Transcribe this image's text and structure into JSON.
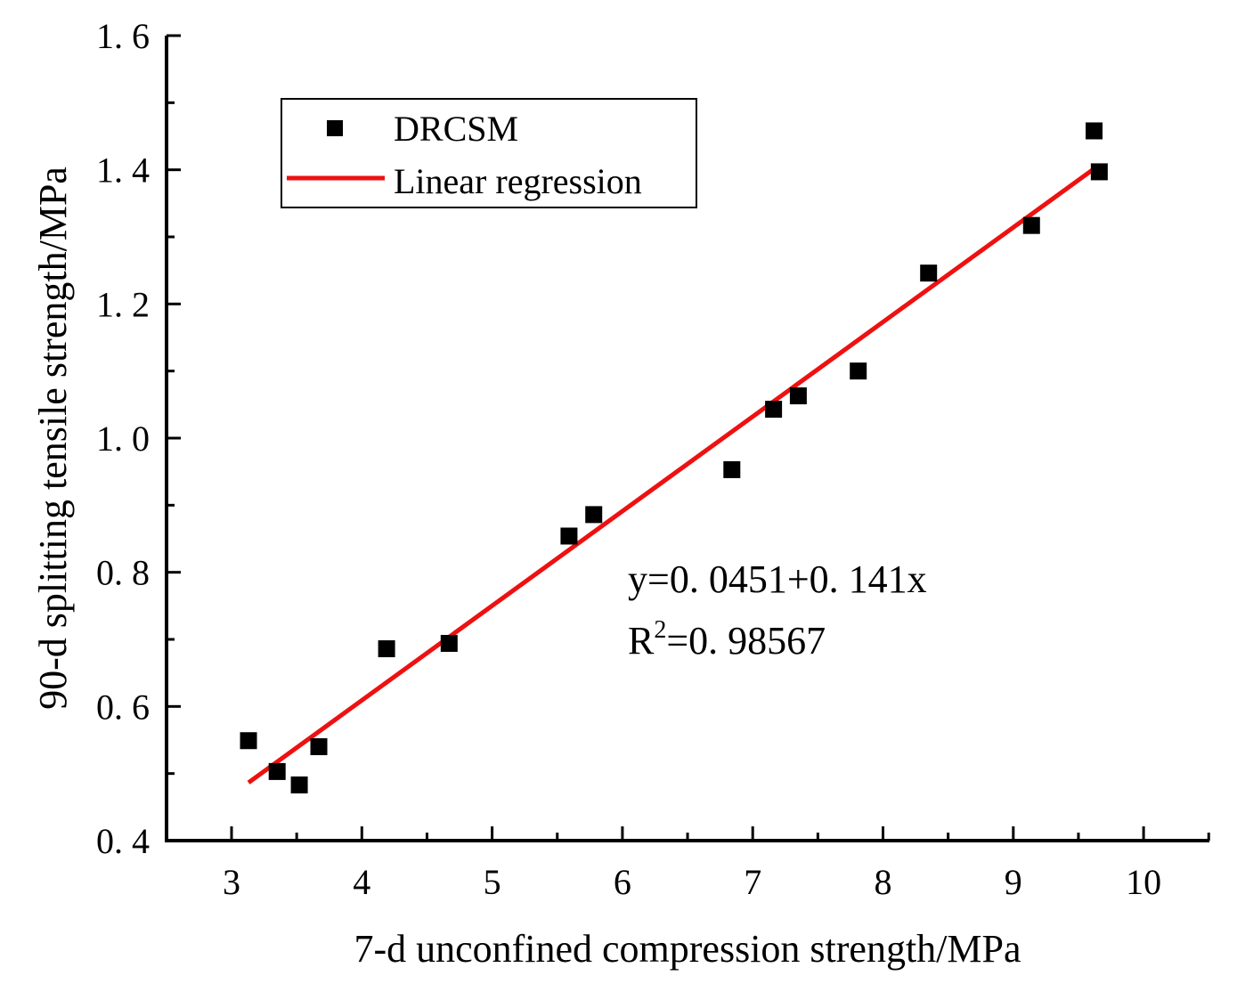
{
  "chart_data": {
    "type": "scatter",
    "title": "",
    "xlabel": "7-d unconfined compression strength/MPa",
    "ylabel": "90-d splitting tensile strength/MPa",
    "xlim": [
      2.5,
      10.5
    ],
    "ylim": [
      0.4,
      1.6
    ],
    "x_ticks": [
      3,
      4,
      5,
      6,
      7,
      8,
      9,
      10
    ],
    "x_tick_labels": [
      "3",
      "4",
      "5",
      "6",
      "7",
      "8",
      "9",
      "10"
    ],
    "y_ticks": [
      0.4,
      0.6,
      0.8,
      1.0,
      1.2,
      1.4,
      1.6
    ],
    "y_tick_labels": [
      "0. 4",
      "0. 6",
      "0. 8",
      "1. 0",
      "1. 2",
      "1. 4",
      "1. 6"
    ],
    "grid": false,
    "legend_position": "top-left",
    "series": [
      {
        "name": "DRCSM",
        "kind": "scatter",
        "marker": "square",
        "color": "#000000",
        "points": [
          {
            "x": 3.13,
            "y": 0.549
          },
          {
            "x": 3.35,
            "y": 0.503
          },
          {
            "x": 3.52,
            "y": 0.483
          },
          {
            "x": 3.67,
            "y": 0.54
          },
          {
            "x": 4.19,
            "y": 0.686
          },
          {
            "x": 4.67,
            "y": 0.694
          },
          {
            "x": 5.59,
            "y": 0.854
          },
          {
            "x": 5.78,
            "y": 0.886
          },
          {
            "x": 6.84,
            "y": 0.953
          },
          {
            "x": 7.16,
            "y": 1.043
          },
          {
            "x": 7.35,
            "y": 1.063
          },
          {
            "x": 7.81,
            "y": 1.1
          },
          {
            "x": 8.35,
            "y": 1.246
          },
          {
            "x": 9.14,
            "y": 1.317
          },
          {
            "x": 9.62,
            "y": 1.458
          },
          {
            "x": 9.66,
            "y": 1.397
          }
        ]
      },
      {
        "name": "Linear regression",
        "kind": "line",
        "color": "#ee1111",
        "intercept": 0.0451,
        "slope": 0.141,
        "x_range": [
          3.13,
          9.66
        ]
      }
    ],
    "annotations": {
      "equation": "y=0. 0451+0. 141x",
      "r2_prefix": "R",
      "r2_superscript": "2",
      "r2_value": "=0. 98567"
    }
  }
}
